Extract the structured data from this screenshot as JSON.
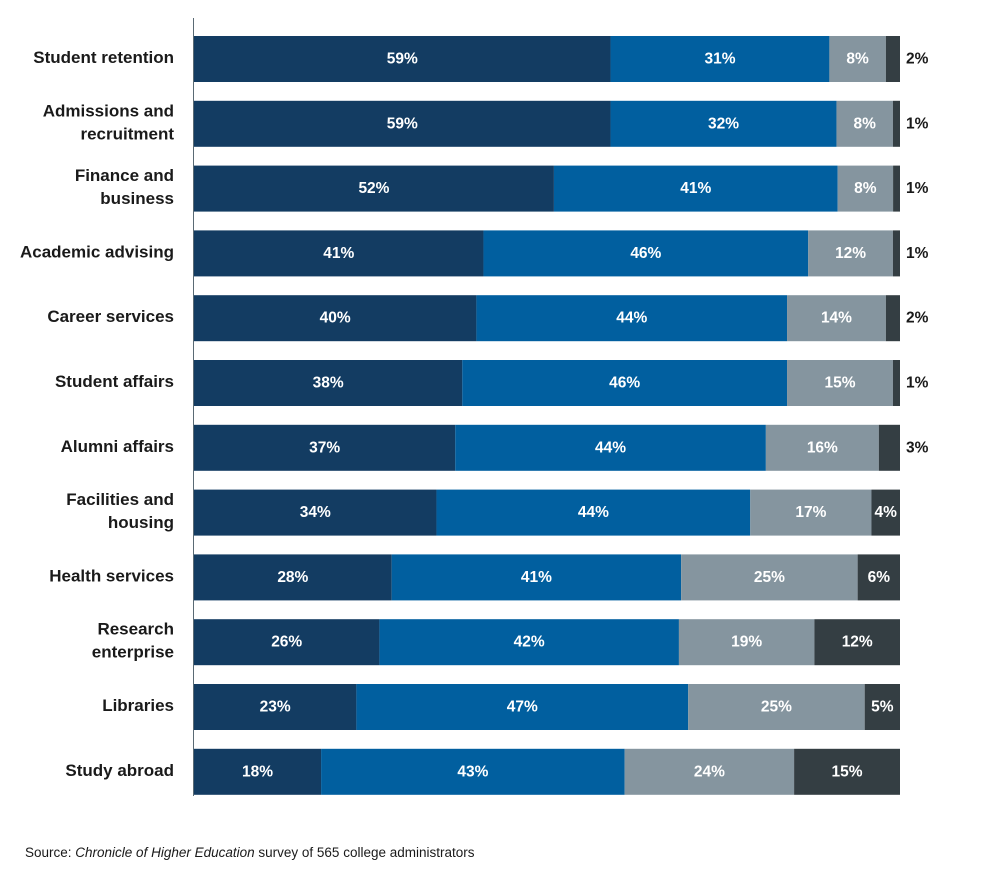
{
  "chart_data": {
    "type": "bar",
    "orientation": "horizontal",
    "stacked": true,
    "categories": [
      "Student retention",
      "Admissions and recruitment",
      "Finance and business",
      "Academic advising",
      "Career services",
      "Student affairs",
      "Alumni affairs",
      "Facilities and housing",
      "Health services",
      "Research enterprise",
      "Libraries",
      "Study abroad"
    ],
    "category_lines": [
      [
        "Student retention"
      ],
      [
        "Admissions and",
        "recruitment"
      ],
      [
        "Finance and",
        "business"
      ],
      [
        "Academic advising"
      ],
      [
        "Career services"
      ],
      [
        "Student affairs"
      ],
      [
        "Alumni affairs"
      ],
      [
        "Facilities and",
        "housing"
      ],
      [
        "Health services"
      ],
      [
        "Research",
        "enterprise"
      ],
      [
        "Libraries"
      ],
      [
        "Study abroad"
      ]
    ],
    "series": [
      {
        "color": "#133c62",
        "values": [
          59,
          59,
          52,
          41,
          40,
          38,
          37,
          34,
          28,
          26,
          23,
          18
        ]
      },
      {
        "color": "#015f9f",
        "values": [
          31,
          32,
          41,
          46,
          44,
          46,
          44,
          44,
          41,
          42,
          47,
          43
        ]
      },
      {
        "color": "#85959f",
        "values": [
          8,
          8,
          8,
          12,
          14,
          15,
          16,
          17,
          25,
          19,
          25,
          24
        ]
      },
      {
        "color": "#343e43",
        "values": [
          2,
          1,
          1,
          1,
          2,
          1,
          3,
          4,
          6,
          12,
          5,
          15
        ]
      }
    ],
    "value_format": "percent",
    "xlim": [
      0,
      100
    ],
    "legend": "none",
    "grid": false
  },
  "source": {
    "prefix": "Source: ",
    "publication": "Chronicle of Higher Education",
    "suffix": " survey of 565 college administrators"
  }
}
